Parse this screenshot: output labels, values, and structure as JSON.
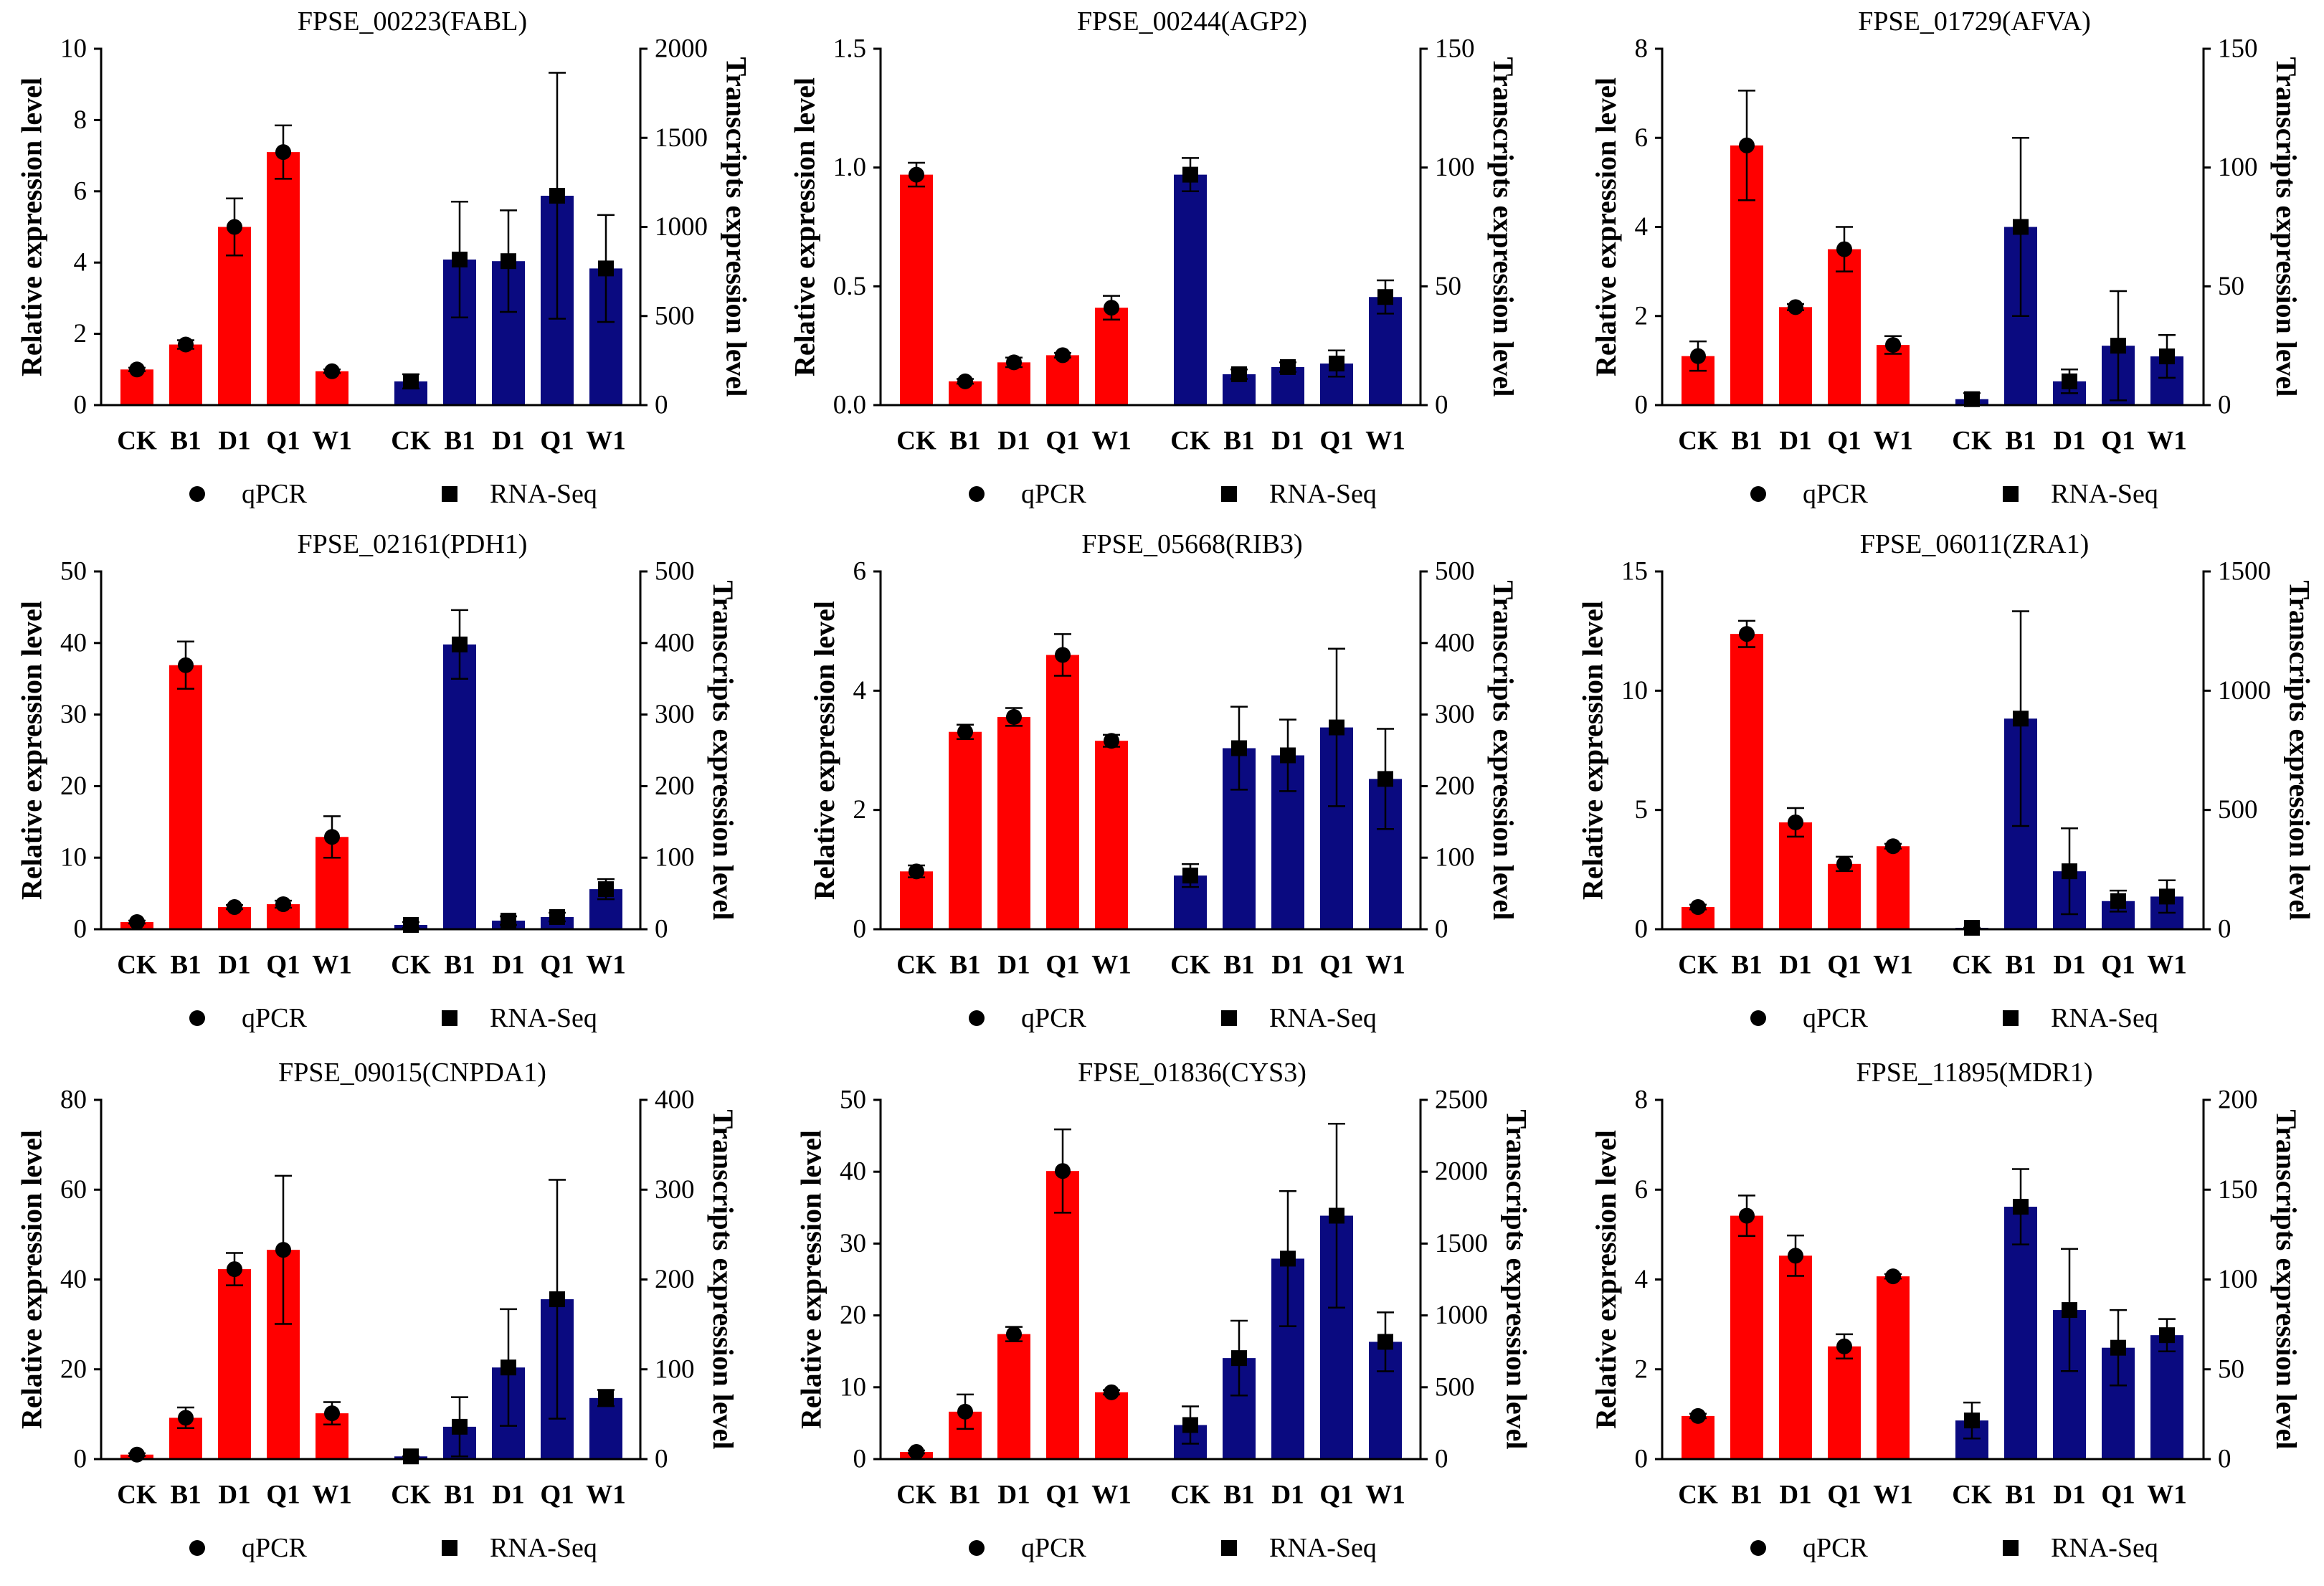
{
  "colors": {
    "qpcr": "#FF0000",
    "rnaseq": "#0A0A80",
    "marker": "#000000"
  },
  "chart_data": [
    {
      "type": "bar",
      "title": "FPSE_00223(FABL)",
      "categories": [
        "CK",
        "B1",
        "D1",
        "Q1",
        "W1"
      ],
      "ylabel": "Relative expression level",
      "ylabel_right": "Transcripts expression level",
      "ylim": [
        0,
        10
      ],
      "ylim_right": [
        0,
        2000
      ],
      "left_ticks": [
        "0",
        "2",
        "4",
        "6",
        "8",
        "10"
      ],
      "right_ticks": [
        "0",
        "500",
        "1000",
        "1500",
        "2000"
      ],
      "series": [
        {
          "name": "qPCR",
          "values": [
            1.0,
            1.7,
            5.0,
            7.1,
            0.95
          ],
          "errors": [
            0.05,
            0.12,
            0.8,
            0.75,
            0.05
          ]
        },
        {
          "name": "RNA-Seq",
          "values": [
            133,
            817,
            808,
            1175,
            767
          ],
          "errors": [
            40,
            325,
            285,
            690,
            300
          ]
        }
      ]
    },
    {
      "type": "bar",
      "title": "FPSE_00244(AGP2)",
      "categories": [
        "CK",
        "B1",
        "D1",
        "Q1",
        "W1"
      ],
      "ylabel": "Relative expression level",
      "ylabel_right": "Transcripts expression level",
      "ylim": [
        0,
        1.5
      ],
      "ylim_right": [
        0,
        150
      ],
      "left_ticks": [
        "0.0",
        "0.5",
        "1.0",
        "1.5"
      ],
      "right_ticks": [
        "0",
        "50",
        "100",
        "150"
      ],
      "series": [
        {
          "name": "qPCR",
          "values": [
            0.97,
            0.1,
            0.18,
            0.21,
            0.41
          ],
          "errors": [
            0.05,
            0.01,
            0.02,
            0.01,
            0.05
          ]
        },
        {
          "name": "RNA-Seq",
          "values": [
            97,
            13,
            16,
            17.5,
            45.5
          ],
          "errors": [
            7,
            2,
            2,
            5.5,
            7
          ]
        }
      ]
    },
    {
      "type": "bar",
      "title": "FPSE_01729(AFVA)",
      "categories": [
        "CK",
        "B1",
        "D1",
        "Q1",
        "W1"
      ],
      "ylabel": "Relative expression level",
      "ylabel_right": "Transcripts expression level",
      "ylim": [
        0,
        8
      ],
      "ylim_right": [
        0,
        150
      ],
      "left_ticks": [
        "0",
        "2",
        "4",
        "6",
        "8"
      ],
      "right_ticks": [
        "0",
        "50",
        "100",
        "150"
      ],
      "series": [
        {
          "name": "qPCR",
          "values": [
            1.1,
            5.83,
            2.2,
            3.5,
            1.35
          ],
          "errors": [
            0.33,
            1.23,
            0.07,
            0.5,
            0.2
          ]
        },
        {
          "name": "RNA-Seq",
          "values": [
            2.5,
            75,
            10,
            25,
            20.5
          ],
          "errors": [
            2.5,
            37.5,
            5,
            23,
            9
          ]
        }
      ]
    },
    {
      "type": "bar",
      "title": "FPSE_02161(PDH1)",
      "categories": [
        "CK",
        "B1",
        "D1",
        "Q1",
        "W1"
      ],
      "ylabel": "Relative expression level",
      "ylabel_right": "Transcripts expression level",
      "ylim": [
        0,
        50
      ],
      "ylim_right": [
        0,
        500
      ],
      "left_ticks": [
        "0",
        "10",
        "20",
        "30",
        "40",
        "50"
      ],
      "right_ticks": [
        "0",
        "100",
        "200",
        "300",
        "400",
        "500"
      ],
      "series": [
        {
          "name": "qPCR",
          "values": [
            1.0,
            36.9,
            3.1,
            3.5,
            12.9
          ],
          "errors": [
            0.2,
            3.3,
            0.3,
            0.5,
            2.9
          ]
        },
        {
          "name": "RNA-Seq",
          "values": [
            6,
            398,
            12,
            17,
            56
          ],
          "errors": [
            4,
            48,
            6,
            6,
            14
          ]
        }
      ]
    },
    {
      "type": "bar",
      "title": "FPSE_05668(RIB3)",
      "categories": [
        "CK",
        "B1",
        "D1",
        "Q1",
        "W1"
      ],
      "ylabel": "Relative expression level",
      "ylabel_right": "Transcripts expression level",
      "ylim": [
        0,
        6
      ],
      "ylim_right": [
        0,
        500
      ],
      "left_ticks": [
        "0",
        "2",
        "4",
        "6"
      ],
      "right_ticks": [
        "0",
        "100",
        "200",
        "300",
        "400",
        "500"
      ],
      "series": [
        {
          "name": "qPCR",
          "values": [
            0.97,
            3.31,
            3.56,
            4.6,
            3.16
          ],
          "errors": [
            0.1,
            0.12,
            0.15,
            0.35,
            0.1
          ]
        },
        {
          "name": "RNA-Seq",
          "values": [
            75,
            253,
            243,
            282,
            210
          ],
          "errors": [
            16,
            58,
            50,
            110,
            70
          ]
        }
      ]
    },
    {
      "type": "bar",
      "title": "FPSE_06011(ZRA1)",
      "categories": [
        "CK",
        "B1",
        "D1",
        "Q1",
        "W1"
      ],
      "ylabel": "Relative expression level",
      "ylabel_right": "Transcripts expression level",
      "ylim": [
        0,
        15
      ],
      "ylim_right": [
        0,
        1500
      ],
      "left_ticks": [
        "0",
        "5",
        "10",
        "15"
      ],
      "right_ticks": [
        "0",
        "500",
        "1000",
        "1500"
      ],
      "series": [
        {
          "name": "qPCR",
          "values": [
            0.93,
            12.38,
            4.48,
            2.74,
            3.48
          ],
          "errors": [
            0.1,
            0.55,
            0.6,
            0.3,
            0.1
          ]
        },
        {
          "name": "RNA-Seq",
          "values": [
            6,
            883,
            243,
            118,
            137
          ],
          "errors": [
            0,
            450,
            180,
            44,
            68
          ]
        }
      ]
    },
    {
      "type": "bar",
      "title": "FPSE_09015(CNPDA1)",
      "categories": [
        "CK",
        "B1",
        "D1",
        "Q1",
        "W1"
      ],
      "ylabel": "Relative expression level",
      "ylabel_right": "Transcripts expression level",
      "ylim": [
        0,
        80
      ],
      "ylim_right": [
        0,
        400
      ],
      "left_ticks": [
        "0",
        "20",
        "40",
        "60",
        "80"
      ],
      "right_ticks": [
        "0",
        "100",
        "200",
        "300",
        "400"
      ],
      "series": [
        {
          "name": "qPCR",
          "values": [
            1.0,
            9.2,
            42.3,
            46.6,
            10.2
          ],
          "errors": [
            0.3,
            2.3,
            3.6,
            16.5,
            2.5
          ]
        },
        {
          "name": "RNA-Seq",
          "values": [
            3,
            36,
            102,
            178,
            68
          ],
          "errors": [
            0,
            33,
            65,
            133,
            9
          ]
        }
      ]
    },
    {
      "type": "bar",
      "title": "FPSE_01836(CYS3)",
      "categories": [
        "CK",
        "B1",
        "D1",
        "Q1",
        "W1"
      ],
      "ylabel": "Relative expression level",
      "ylabel_right": "Transcripts expression level",
      "ylim": [
        0,
        50
      ],
      "ylim_right": [
        0,
        2500
      ],
      "left_ticks": [
        "0",
        "10",
        "20",
        "30",
        "40",
        "50"
      ],
      "right_ticks": [
        "0",
        "500",
        "1000",
        "1500",
        "2000",
        "2500"
      ],
      "series": [
        {
          "name": "qPCR",
          "values": [
            1.0,
            6.6,
            17.4,
            40.1,
            9.3
          ],
          "errors": [
            0.2,
            2.4,
            1.0,
            5.8,
            0.3
          ]
        },
        {
          "name": "RNA-Seq",
          "values": [
            237,
            703,
            1395,
            1694,
            816
          ],
          "errors": [
            130,
            260,
            470,
            640,
            205
          ]
        }
      ]
    },
    {
      "type": "bar",
      "title": "FPSE_11895(MDR1)",
      "categories": [
        "CK",
        "B1",
        "D1",
        "Q1",
        "W1"
      ],
      "ylabel": "Relative expression level",
      "ylabel_right": "Transcripts expression level",
      "ylim": [
        0,
        8
      ],
      "ylim_right": [
        0,
        200
      ],
      "left_ticks": [
        "0",
        "2",
        "4",
        "6",
        "8"
      ],
      "right_ticks": [
        "0",
        "50",
        "100",
        "150",
        "200"
      ],
      "series": [
        {
          "name": "qPCR",
          "values": [
            0.96,
            5.42,
            4.53,
            2.51,
            4.07
          ],
          "errors": [
            0.05,
            0.45,
            0.45,
            0.27,
            0.05
          ]
        },
        {
          "name": "RNA-Seq",
          "values": [
            21.5,
            140.5,
            83,
            62,
            69
          ],
          "errors": [
            10,
            21,
            34,
            21,
            9
          ]
        }
      ]
    }
  ]
}
